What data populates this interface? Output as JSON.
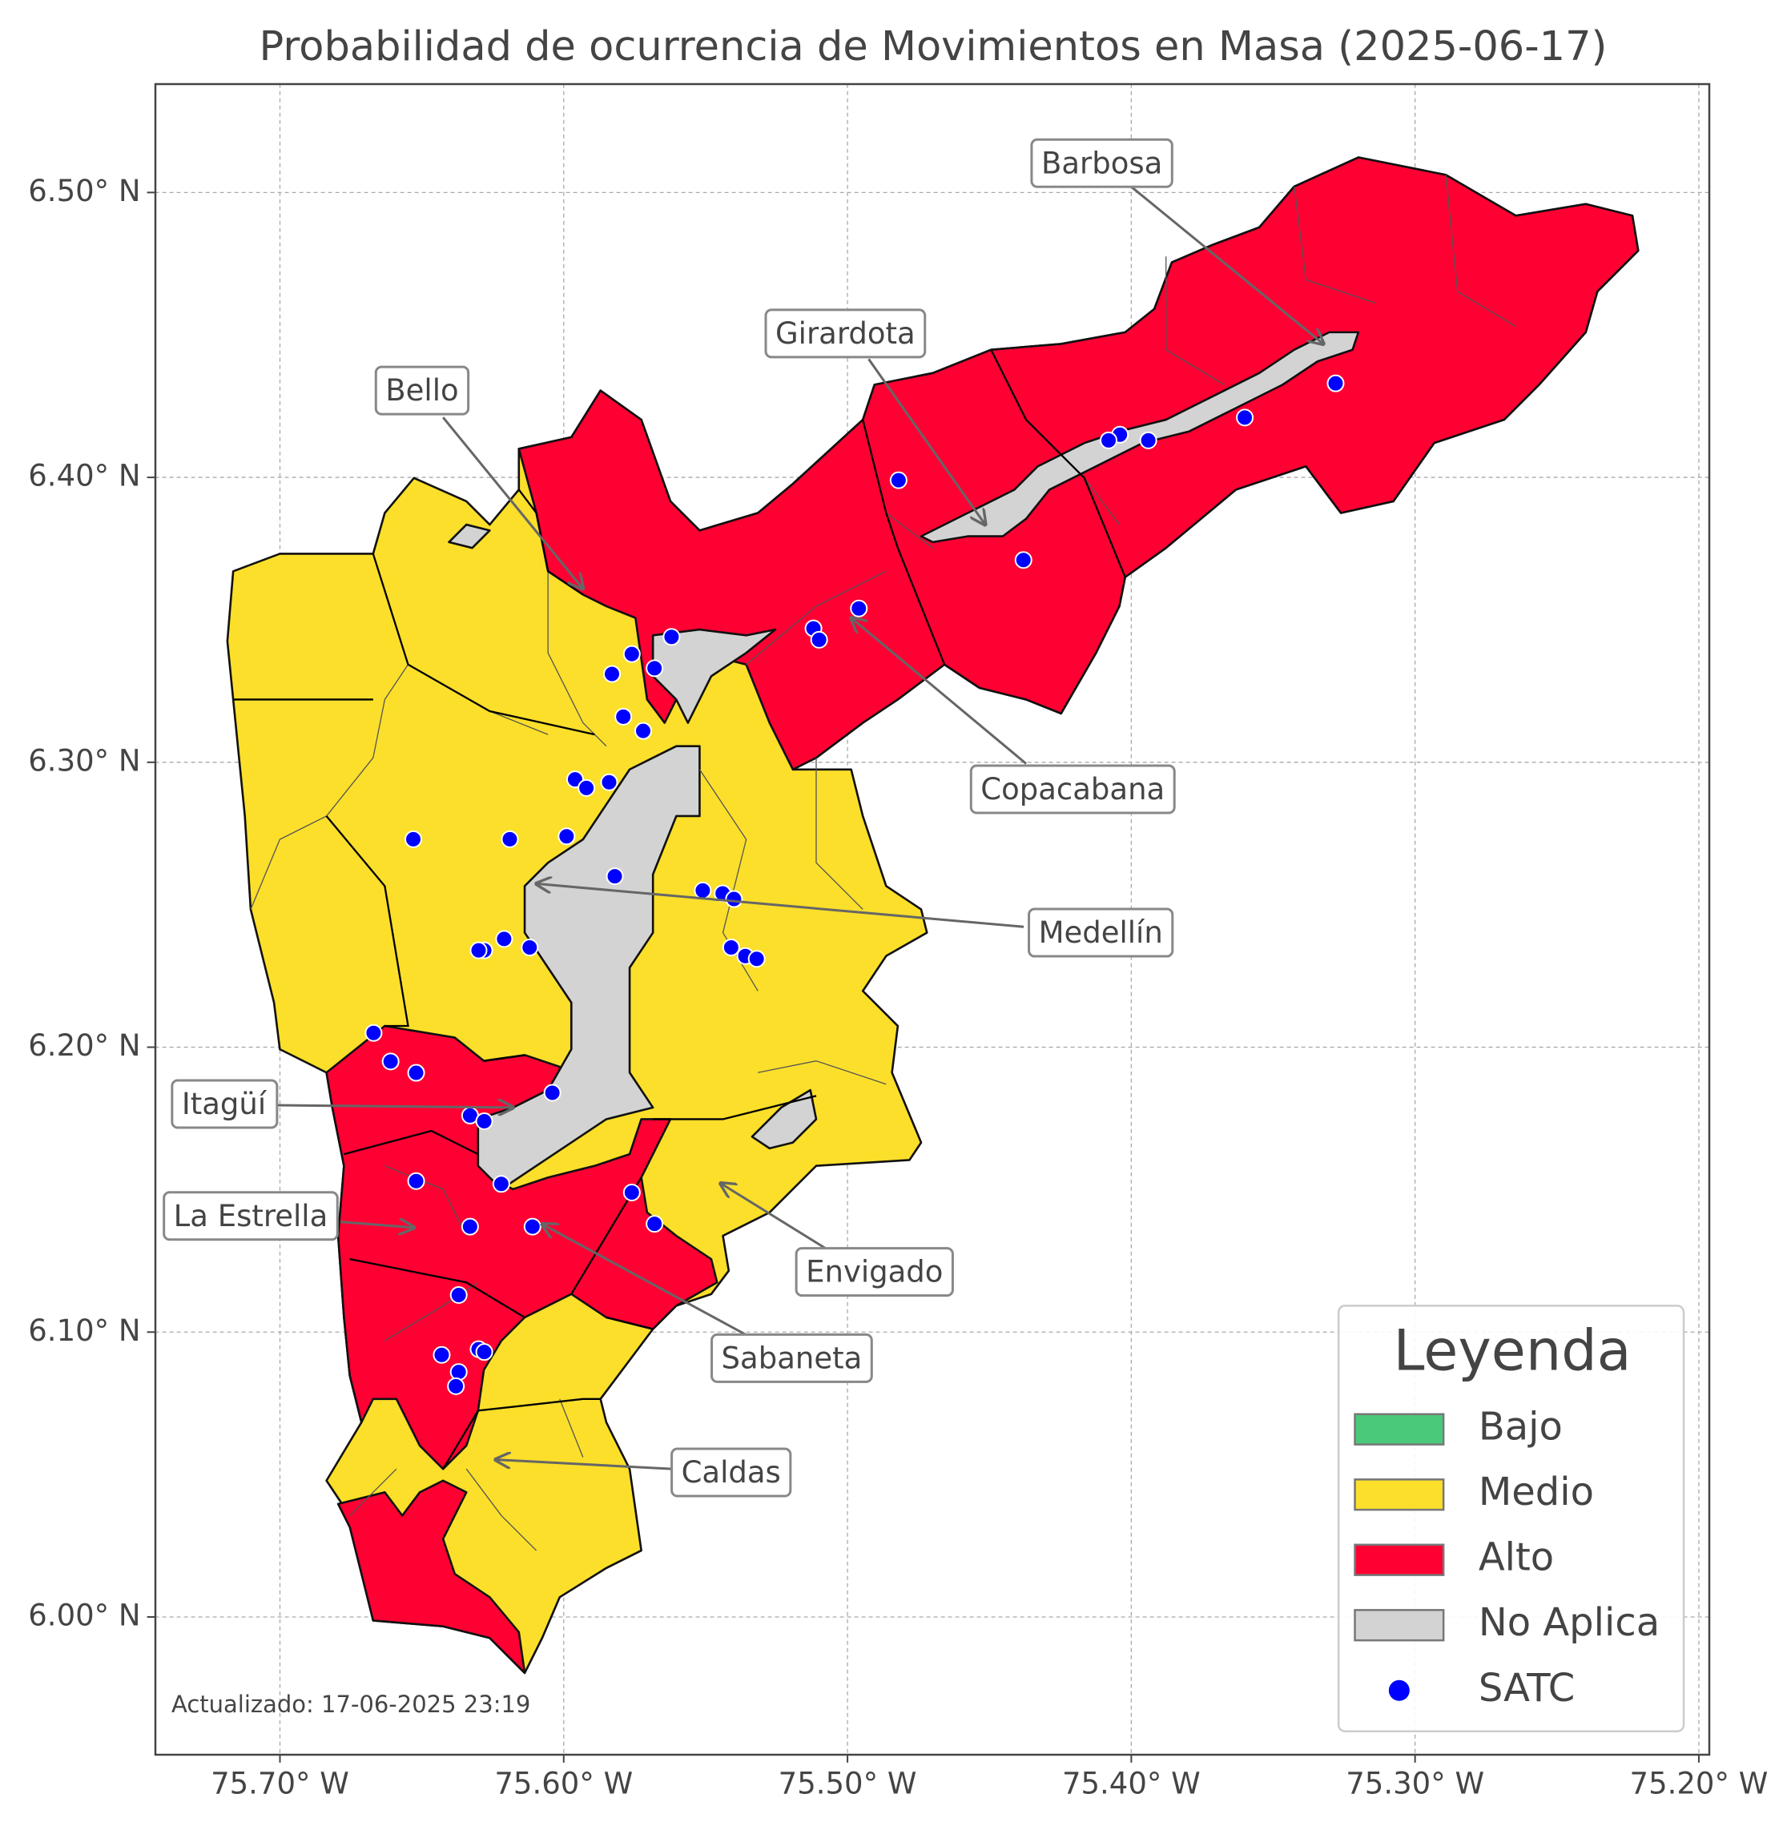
{
  "title": "Probabilidad de ocurrencia de Movimientos en Masa (2025-06-17)",
  "xlim": [
    -75.744,
    -75.1963
  ],
  "ylim": [
    5.9517,
    6.5381
  ],
  "xticks": [
    {
      "value": -75.7,
      "label": "75.70° W"
    },
    {
      "value": -75.6,
      "label": "75.60° W"
    },
    {
      "value": -75.5,
      "label": "75.50° W"
    },
    {
      "value": -75.4,
      "label": "75.40° W"
    },
    {
      "value": -75.3,
      "label": "75.30° W"
    },
    {
      "value": -75.2,
      "label": "75.20° W"
    }
  ],
  "yticks": [
    {
      "value": 6.0,
      "label": "6.00° N"
    },
    {
      "value": 6.1,
      "label": "6.10° N"
    },
    {
      "value": 6.2,
      "label": "6.20° N"
    },
    {
      "value": 6.3,
      "label": "6.30° N"
    },
    {
      "value": 6.4,
      "label": "6.40° N"
    },
    {
      "value": 6.5,
      "label": "6.50° N"
    }
  ],
  "grid": true,
  "annotations": [
    "Barbosa",
    "Girardota",
    "Bello",
    "Copacabana",
    "Medellín",
    "Itagüí",
    "La Estrella",
    "Envigado",
    "Sabaneta",
    "Caldas"
  ],
  "legend": {
    "title": "Leyenda",
    "entries": [
      {
        "name": "Bajo",
        "color": "#4bc97a"
      },
      {
        "name": "Medio",
        "color": "#fbdf2a"
      },
      {
        "name": "Alto",
        "color": "#ff0033"
      },
      {
        "name": "No Aplica",
        "color": "#d3d3d3"
      }
    ]
  },
  "satc": {
    "name": "SATC",
    "color": "#0000ff",
    "lon": [
      -75.328,
      -75.36,
      -75.394,
      -75.404,
      -75.408,
      -75.482,
      -75.438,
      -75.496,
      -75.512,
      -75.51,
      -75.562,
      -75.576,
      -75.568,
      -75.583,
      -75.579,
      -75.572,
      -75.596,
      -75.592,
      -75.584,
      -75.653,
      -75.619,
      -75.599,
      -75.582,
      -75.551,
      -75.544,
      -75.54,
      -75.621,
      -75.628,
      -75.63,
      -75.612,
      -75.541,
      -75.536,
      -75.532,
      -75.667,
      -75.661,
      -75.652,
      -75.604,
      -75.633,
      -75.628,
      -75.652,
      -75.622,
      -75.576,
      -75.568,
      -75.633,
      -75.611,
      -75.637,
      -75.643,
      -75.63,
      -75.628,
      -75.637,
      -75.638
    ],
    "lat": [
      6.433,
      6.421,
      6.413,
      6.415,
      6.413,
      6.399,
      6.371,
      6.354,
      6.347,
      6.343,
      6.344,
      6.338,
      6.333,
      6.331,
      6.316,
      6.311,
      6.294,
      6.291,
      6.293,
      6.273,
      6.273,
      6.274,
      6.26,
      6.255,
      6.254,
      6.252,
      6.238,
      6.234,
      6.234,
      6.235,
      6.235,
      6.232,
      6.231,
      6.205,
      6.195,
      6.191,
      6.184,
      6.176,
      6.174,
      6.153,
      6.152,
      6.149,
      6.138,
      6.137,
      6.137,
      6.113,
      6.092,
      6.094,
      6.093,
      6.086,
      6.081
    ]
  },
  "updated": "Actualizado: 17-06-2025 23:19"
}
